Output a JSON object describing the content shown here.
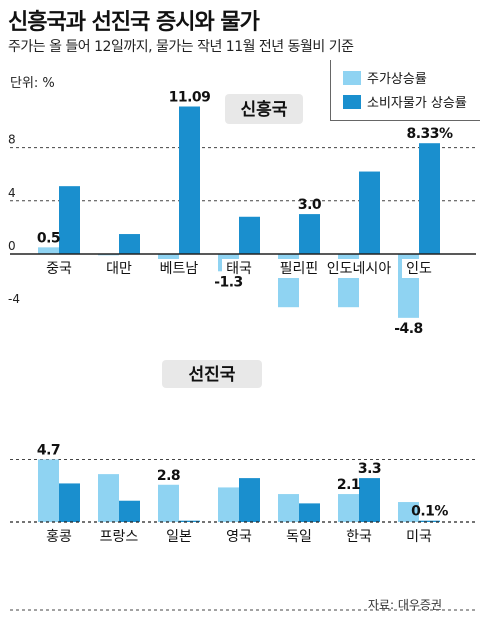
{
  "title": "신흥국과 선진국 증시와 물가",
  "subtitle": "주가는 올 들어 12일까지, 물가는 작년 11월 전년 동월비 기준",
  "unit": "단위: %",
  "legend": {
    "stock": "주가상승률",
    "cpi": "소비자물가 상승률"
  },
  "source": "자료: 대우증권",
  "colors": {
    "stock": "#8fd3f2",
    "cpi": "#1a8fce"
  },
  "chart_data": [
    {
      "type": "bar",
      "title": "신흥국",
      "categories": [
        "중국",
        "대만",
        "베트남",
        "태국",
        "필리핀",
        "인도네시아",
        "인도"
      ],
      "series": [
        {
          "name": "주가상승률",
          "values": [
            0.5,
            -0.1,
            -1.2,
            -1.3,
            -4.0,
            -4.0,
            -4.8
          ]
        },
        {
          "name": "소비자물가 상승률",
          "values": [
            5.1,
            1.5,
            11.09,
            2.8,
            3.0,
            6.2,
            8.33
          ]
        }
      ],
      "data_labels": [
        {
          "text": "0.5",
          "category": "중국",
          "series": 0
        },
        {
          "text": "11.09",
          "category": "베트남",
          "series": 1
        },
        {
          "text": "-1.3",
          "category": "태국",
          "series": 0
        },
        {
          "text": "3.0",
          "category": "필리핀",
          "series": 1
        },
        {
          "text": "8.33%",
          "category": "인도",
          "series": 1
        },
        {
          "text": "-4.8",
          "category": "인도",
          "series": 0
        }
      ],
      "yticks": [
        "8",
        "4",
        "0",
        "-4"
      ],
      "ylim": [
        -5,
        12
      ],
      "grid": true,
      "legend": "top-right"
    },
    {
      "type": "bar",
      "title": "선진국",
      "categories": [
        "홍콩",
        "프랑스",
        "일본",
        "영국",
        "독일",
        "한국",
        "미국"
      ],
      "series": [
        {
          "name": "주가상승률",
          "values": [
            4.7,
            3.6,
            2.8,
            2.6,
            2.1,
            2.1,
            1.5
          ]
        },
        {
          "name": "소비자물가 상승률",
          "values": [
            2.9,
            1.6,
            0.1,
            3.3,
            1.4,
            3.3,
            0.1
          ]
        }
      ],
      "data_labels": [
        {
          "text": "4.7",
          "category": "홍콩",
          "series": 0
        },
        {
          "text": "2.8",
          "category": "일본",
          "series": 0
        },
        {
          "text": "2.1",
          "category": "한국",
          "series": 0
        },
        {
          "text": "3.3",
          "category": "한국",
          "series": 1
        },
        {
          "text": "0.1%",
          "category": "미국",
          "series": 1
        }
      ],
      "ylim": [
        0,
        5.5
      ],
      "grid": true
    }
  ]
}
